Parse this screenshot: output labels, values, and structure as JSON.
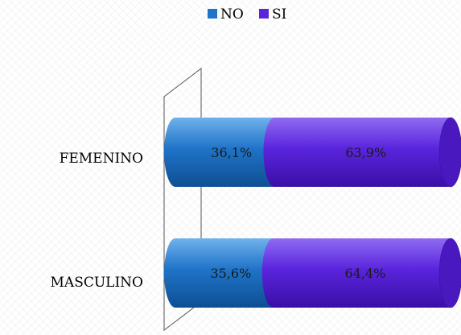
{
  "chart_data": {
    "type": "bar",
    "orientation": "horizontal",
    "stacked": true,
    "percent": true,
    "three_d": true,
    "categories": [
      "FEMENINO",
      "MASCULINO"
    ],
    "series": [
      {
        "name": "NO",
        "values": [
          36.1,
          35.6
        ],
        "labels": [
          "36,1%",
          "35,6%"
        ],
        "color": "#1f73c8"
      },
      {
        "name": "SI",
        "values": [
          63.9,
          64.4
        ],
        "labels": [
          "63,9%",
          "64,4%"
        ],
        "color": "#5a24dc"
      }
    ],
    "xlim": [
      0,
      100
    ],
    "legend_position": "top",
    "grid": false
  }
}
